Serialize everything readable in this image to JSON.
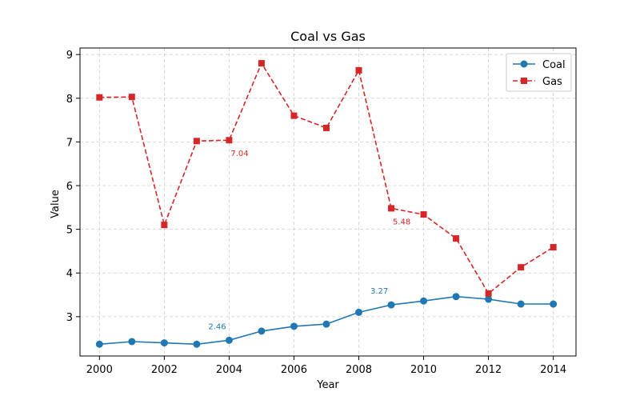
{
  "chart_data": {
    "type": "line",
    "title": "Coal vs Gas",
    "xlabel": "Year",
    "ylabel": "Value",
    "x": [
      2000,
      2001,
      2002,
      2003,
      2004,
      2005,
      2006,
      2007,
      2008,
      2009,
      2010,
      2011,
      2012,
      2013,
      2014
    ],
    "xticks": [
      2000,
      2002,
      2004,
      2006,
      2008,
      2010,
      2012,
      2014
    ],
    "yticks": [
      3,
      4,
      5,
      6,
      7,
      8,
      9
    ],
    "xlim": [
      1999.4,
      2014.7
    ],
    "ylim": [
      2.1,
      9.15
    ],
    "grid": true,
    "legend_position": "top-right",
    "series": [
      {
        "name": "Coal",
        "color": "#1f77b4",
        "marker": "circle",
        "linestyle": "solid",
        "values": [
          2.37,
          2.43,
          2.4,
          2.37,
          2.46,
          2.67,
          2.78,
          2.83,
          3.1,
          3.27,
          3.36,
          3.46,
          3.4,
          3.29,
          3.29
        ]
      },
      {
        "name": "Gas",
        "color": "#d62728",
        "marker": "square",
        "linestyle": "dashed",
        "values": [
          8.02,
          8.03,
          5.1,
          7.02,
          7.04,
          8.8,
          7.6,
          7.32,
          8.64,
          5.48,
          5.34,
          4.79,
          3.53,
          4.13,
          4.59
        ]
      }
    ],
    "annotations": [
      {
        "text": "2.46",
        "x": 2004,
        "y": 2.46,
        "series": "Coal"
      },
      {
        "text": "3.27",
        "x": 2009,
        "y": 3.27,
        "series": "Coal"
      },
      {
        "text": "7.04",
        "x": 2004,
        "y": 7.04,
        "series": "Gas"
      },
      {
        "text": "5.48",
        "x": 2009,
        "y": 5.48,
        "series": "Gas"
      }
    ]
  }
}
